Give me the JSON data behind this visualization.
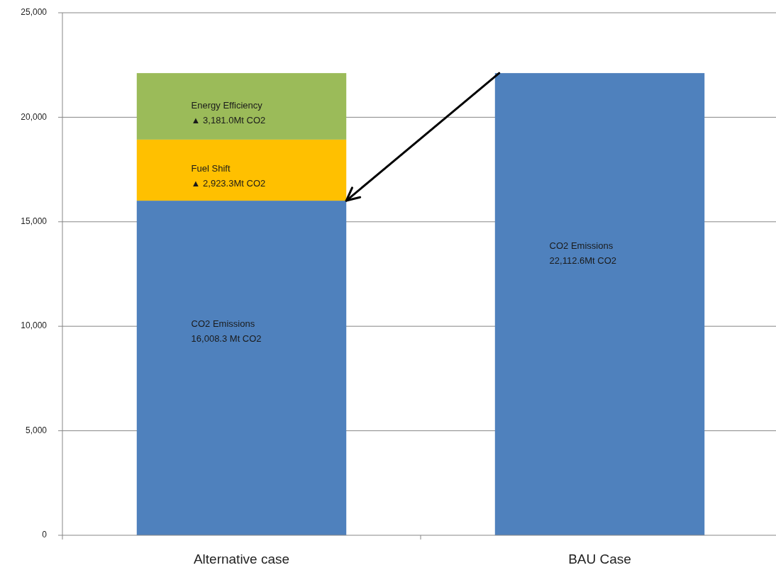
{
  "chart_data": {
    "type": "bar",
    "stacked": true,
    "categories": [
      "Alternative case",
      "BAU Case"
    ],
    "series": [
      {
        "name": "CO2 Emissions",
        "color": "#4f81bd",
        "values": [
          16008.3,
          22112.6
        ],
        "value_labels": [
          "16,008.3 Mt CO2",
          "22,112.6Mt CO2"
        ]
      },
      {
        "name": "Fuel Shift",
        "color": "#ffc000",
        "values": [
          2923.3,
          null
        ],
        "value_labels": [
          "▲ 2,923.3Mt CO2",
          null
        ]
      },
      {
        "name": "Energy Efficiency",
        "color": "#9bbb59",
        "values": [
          3181.0,
          null
        ],
        "value_labels": [
          "▲ 3,181.0Mt CO2",
          null
        ]
      }
    ],
    "ylim": [
      0,
      25000
    ],
    "yticks": [
      0,
      {
        "value": 5000,
        "label": "5,000"
      },
      {
        "value": 10000,
        "label": "10,000"
      },
      {
        "value": 15000,
        "label": "15,000"
      },
      {
        "value": 20000,
        "label": "20,000"
      },
      {
        "value": 25000,
        "label": "25,000"
      }
    ],
    "grid": "y"
  }
}
